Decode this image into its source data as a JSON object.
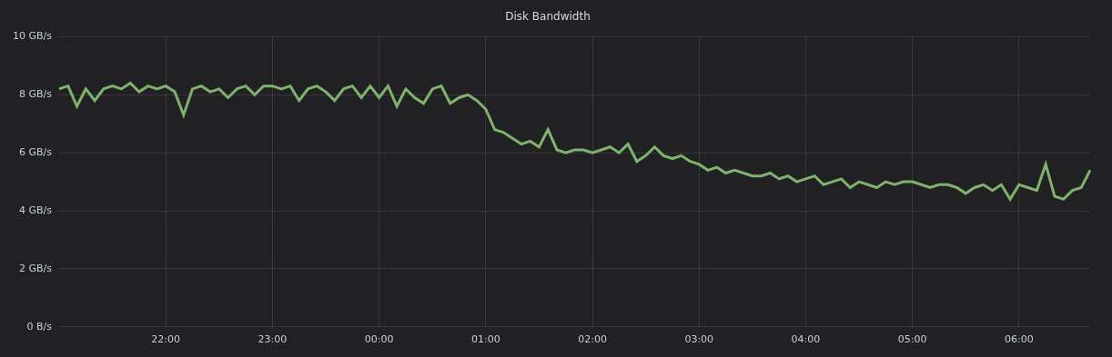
{
  "chart_data": {
    "type": "line",
    "title": "Disk Bandwidth",
    "categories": [
      null,
      null,
      null,
      null,
      null,
      null,
      null,
      null,
      null,
      null,
      null,
      null,
      "22:00",
      null,
      null,
      null,
      null,
      null,
      null,
      null,
      null,
      null,
      null,
      null,
      "23:00",
      null,
      null,
      null,
      null,
      null,
      null,
      null,
      null,
      null,
      null,
      null,
      "00:00",
      null,
      null,
      null,
      null,
      null,
      null,
      null,
      null,
      null,
      null,
      null,
      "01:00",
      null,
      null,
      null,
      null,
      null,
      null,
      null,
      null,
      null,
      null,
      null,
      "02:00",
      null,
      null,
      null,
      null,
      null,
      null,
      null,
      null,
      null,
      null,
      null,
      "03:00",
      null,
      null,
      null,
      null,
      null,
      null,
      null,
      null,
      null,
      null,
      null,
      "04:00",
      null,
      null,
      null,
      null,
      null,
      null,
      null,
      null,
      null,
      null,
      null,
      "05:00",
      null,
      null,
      null,
      null,
      null,
      null,
      null,
      null,
      null,
      null,
      null,
      "06:00",
      null,
      null,
      null,
      null,
      null,
      null,
      null,
      null
    ],
    "values": [
      8.2,
      8.3,
      7.6,
      8.2,
      7.8,
      8.2,
      8.3,
      8.2,
      8.4,
      8.1,
      8.3,
      8.2,
      8.3,
      8.1,
      7.3,
      8.2,
      8.3,
      8.1,
      8.2,
      7.9,
      8.2,
      8.3,
      8.0,
      8.3,
      8.3,
      8.2,
      8.3,
      7.8,
      8.2,
      8.3,
      8.1,
      7.8,
      8.2,
      8.3,
      7.9,
      8.3,
      7.9,
      8.3,
      7.6,
      8.2,
      7.9,
      7.7,
      8.2,
      8.3,
      7.7,
      7.9,
      8.0,
      7.8,
      7.5,
      6.8,
      6.7,
      6.5,
      6.3,
      6.4,
      6.2,
      6.8,
      6.1,
      6.0,
      6.1,
      6.1,
      6.0,
      6.1,
      6.2,
      6.0,
      6.3,
      5.7,
      5.9,
      6.2,
      5.9,
      5.8,
      5.9,
      5.7,
      5.6,
      5.4,
      5.5,
      5.3,
      5.4,
      5.3,
      5.2,
      5.2,
      5.3,
      5.1,
      5.2,
      5.0,
      5.1,
      5.2,
      4.9,
      5.0,
      5.1,
      4.8,
      5.0,
      4.9,
      4.8,
      5.0,
      4.9,
      5.0,
      5.0,
      4.9,
      4.8,
      4.9,
      4.9,
      4.8,
      4.6,
      4.8,
      4.9,
      4.7,
      4.9,
      4.4,
      4.9,
      4.8,
      4.7,
      5.6,
      4.5,
      4.4,
      4.7,
      4.8,
      5.4
    ],
    "color": "#7eb26d",
    "ylim": [
      0,
      10
    ],
    "yticks": [
      {
        "value": 0,
        "label": "0 B/s"
      },
      {
        "value": 2,
        "label": "2 GB/s"
      },
      {
        "value": 4,
        "label": "4 GB/s"
      },
      {
        "value": 6,
        "label": "6 GB/s"
      },
      {
        "value": 8,
        "label": "8 GB/s"
      },
      {
        "value": 10,
        "label": "10 GB/s"
      }
    ],
    "grid": true
  }
}
